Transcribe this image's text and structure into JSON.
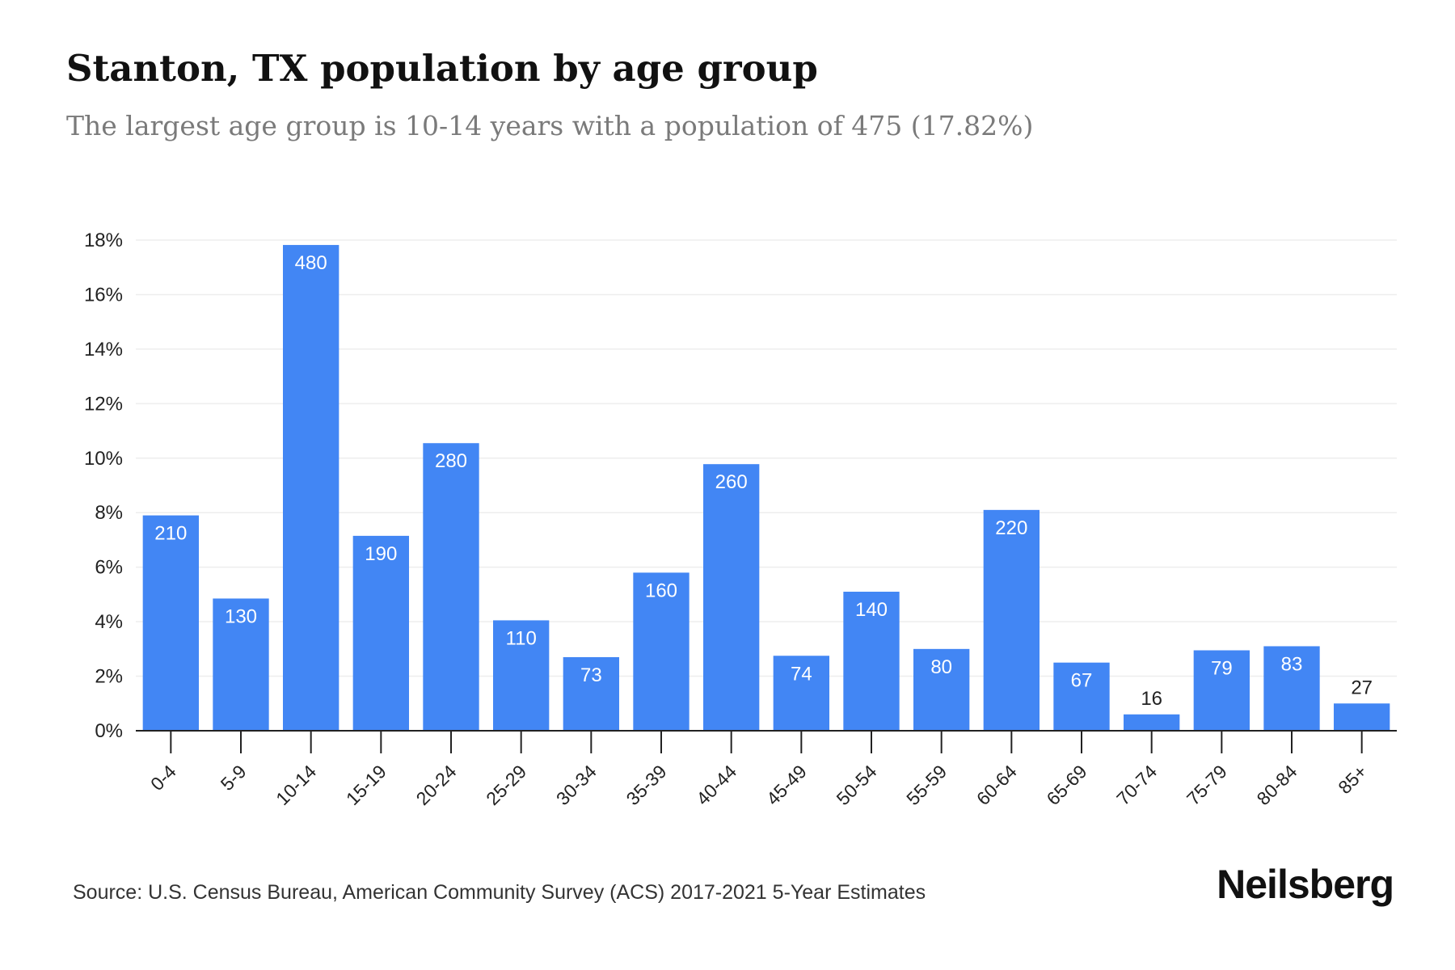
{
  "header": {
    "title": "Stanton, TX population by age group",
    "subtitle": "The largest age group is 10-14 years with a population of 475 (17.82%)"
  },
  "footer": {
    "source": "Source: U.S. Census Bureau, American Community Survey (ACS) 2017-2021 5-Year Estimates",
    "brand": "Neilsberg"
  },
  "colors": {
    "bar": "#4286f4",
    "label_inside": "#ffffff",
    "label_outside": "#222222",
    "grid": "#eeeeee",
    "axis": "#222222"
  },
  "chart_data": {
    "type": "bar",
    "title": "Stanton, TX population by age group",
    "subtitle": "The largest age group is 10-14 years with a population of 475 (17.82%)",
    "categories": [
      "0-4",
      "5-9",
      "10-14",
      "15-19",
      "20-24",
      "25-29",
      "30-34",
      "35-39",
      "40-44",
      "45-49",
      "50-54",
      "55-59",
      "60-64",
      "65-69",
      "70-74",
      "75-79",
      "80-84",
      "85+"
    ],
    "values": [
      7.9,
      4.85,
      17.82,
      7.15,
      10.55,
      4.05,
      2.7,
      5.8,
      9.78,
      2.75,
      5.1,
      3.0,
      8.1,
      2.5,
      0.6,
      2.95,
      3.1,
      1.0
    ],
    "data_labels": [
      "210",
      "130",
      "480",
      "190",
      "280",
      "110",
      "73",
      "160",
      "260",
      "74",
      "140",
      "80",
      "220",
      "67",
      "16",
      "79",
      "83",
      "27"
    ],
    "y_ticks": [
      0,
      2,
      4,
      6,
      8,
      10,
      12,
      14,
      16,
      18
    ],
    "y_tick_labels": [
      "0%",
      "2%",
      "4%",
      "6%",
      "8%",
      "10%",
      "12%",
      "14%",
      "16%",
      "18%"
    ],
    "ylim": [
      0,
      18
    ],
    "grid": true,
    "legend": "none"
  }
}
